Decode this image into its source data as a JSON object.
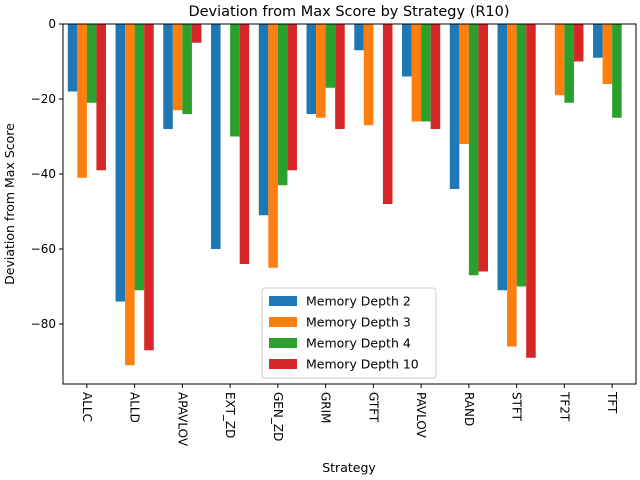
{
  "chart_data": {
    "type": "bar",
    "title": "Deviation from Max Score by Strategy (R10)",
    "xlabel": "Strategy",
    "ylabel": "Deviation from Max Score",
    "categories": [
      "ALLC",
      "ALLD",
      "APAVLOV",
      "EXT_ZD",
      "GEN_ZD",
      "GRIM",
      "GTFT",
      "PAVLOV",
      "RAND",
      "STFT",
      "TF2T",
      "TFT"
    ],
    "yticks": [
      0,
      -20,
      -40,
      -60,
      -80
    ],
    "ylim": [
      -96,
      0
    ],
    "grid": false,
    "legend_position": "lower center",
    "series": [
      {
        "name": "Memory Depth 2",
        "color": "#1f77b4",
        "values": [
          -18,
          -74,
          -28,
          -60,
          -51,
          -24,
          -7,
          -14,
          -44,
          -71,
          0,
          -9
        ]
      },
      {
        "name": "Memory Depth 3",
        "color": "#ff7f0e",
        "values": [
          -41,
          -91,
          -23,
          0,
          -65,
          -25,
          -27,
          -26,
          -32,
          -86,
          -19,
          -16
        ]
      },
      {
        "name": "Memory Depth 4",
        "color": "#2ca02c",
        "values": [
          -21,
          -71,
          -24,
          -30,
          -43,
          -17,
          0,
          -26,
          -67,
          -70,
          -21,
          -25
        ]
      },
      {
        "name": "Memory Depth 10",
        "color": "#d62728",
        "values": [
          -39,
          -87,
          -5,
          -64,
          -39,
          -28,
          -48,
          -28,
          -66,
          -89,
          -10,
          0
        ]
      }
    ]
  }
}
